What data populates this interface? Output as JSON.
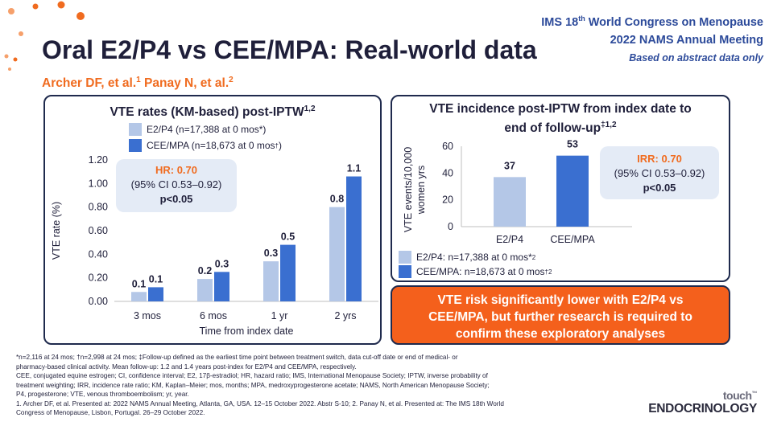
{
  "conference": {
    "line1_pre": "IMS 18",
    "line1_sup": "th",
    "line1_post": " World Congress on Menopause",
    "line2": "2022 NAMS Annual Meeting",
    "note": "Based on abstract data only"
  },
  "title": "Oral E2/P4 vs CEE/MPA: Real-world data",
  "authors": {
    "a1": "Archer DF, et al.",
    "a1_sup": "1",
    "a2": " Panay N, et al.",
    "a2_sup": "2"
  },
  "colors": {
    "e2p4": "#b4c7e7",
    "ceempa": "#3a6fd0",
    "accent": "#f06b1f",
    "navy": "#1f2a4d"
  },
  "left_panel": {
    "title": "VTE rates (KM-based) post-IPTW",
    "title_sup": "1,2",
    "legend": [
      {
        "pre": "E2/P4 (n=17,388 at 0 mos*)",
        "sup": ""
      },
      {
        "pre": "CEE/MPA (n=18,673 at 0 mos",
        "sup": "†",
        "post": ")"
      }
    ],
    "hr_box": {
      "label": "HR: 0.70",
      "ci": "(95% CI 0.53–0.92)",
      "p": "p<0.05"
    }
  },
  "right_panel": {
    "title_line1": "VTE incidence post-IPTW from index date to",
    "title_line2": "end of follow-up",
    "title_sup": "‡1,2",
    "legend": [
      {
        "pre": "E2/P4: n=17,388 at 0 mos*",
        "sup": "2"
      },
      {
        "pre": "CEE/MPA: n=18,673 at 0 mos",
        "sup": "†2"
      }
    ],
    "irr_box": {
      "label": "IRR: 0.70",
      "ci": "(95% CI 0.53–0.92)",
      "p": "p<0.05"
    }
  },
  "callout": {
    "line1": "VTE risk significantly lower with E2/P4 vs",
    "line2": "CEE/MPA, but further research is required to",
    "line3": "confirm these exploratory analyses"
  },
  "footnotes": [
    "*n=2,116 at 24 mos; †n=2,998 at 24 mos; ‡Follow-up defined as the earliest time point between treatment switch, data cut-off date or end of medical- or",
    "pharmacy-based clinical activity. Mean follow-up: 1.2 and 1.4 years post-index for E2/P4 and CEE/MPA, respectively.",
    "CEE, conjugated equine estrogen; CI, confidence interval; E2, 17β-estradiol; HR, hazard ratio; IMS, International Menopause Society; IPTW, inverse probability of",
    "treatment weighting; IRR, incidence rate ratio; KM, Kaplan–Meier; mos, months; MPA, medroxyprogesterone acetate; NAMS, North American Menopause Society;",
    "P4, progesterone; VTE, venous thromboembolism; yr, year.",
    "1. Archer DF, et al. Presented at: 2022 NAMS Annual Meeting, Atlanta, GA, USA. 12–15 October 2022. Abstr S-10; 2. Panay N, et al. Presented at: The IMS 18th World",
    "Congress of Menopause, Lisbon, Portugal. 26–29 October 2022."
  ],
  "logo": {
    "top": "touch",
    "tm": "™",
    "bottom": "ENDOCRINOLOGY"
  },
  "chart_data": [
    {
      "type": "bar",
      "categories": [
        "3 mos",
        "6 mos",
        "1 yr",
        "2 yrs"
      ],
      "series": [
        {
          "name": "E2/P4 (n=17,388 at 0 mos*)",
          "values": [
            0.08,
            0.19,
            0.34,
            0.8
          ],
          "labels": [
            "0.1",
            "0.2",
            "0.3",
            "0.8"
          ]
        },
        {
          "name": "CEE/MPA (n=18,673 at 0 mos†)",
          "values": [
            0.12,
            0.25,
            0.48,
            1.06
          ],
          "labels": [
            "0.1",
            "0.3",
            "0.5",
            "1.1"
          ]
        }
      ],
      "xlabel": "Time from index date",
      "ylabel": "VTE rate (%)",
      "ylim": [
        0,
        1.2
      ],
      "yticks": [
        "0.00",
        "0.20",
        "0.40",
        "0.60",
        "0.80",
        "1.00",
        "1.20"
      ]
    },
    {
      "type": "bar",
      "categories": [
        "E2/P4",
        "CEE/MPA"
      ],
      "values": [
        37,
        53
      ],
      "labels": [
        "37",
        "53"
      ],
      "xlabel": "",
      "ylabel_line1": "VTE events/10,000",
      "ylabel_line2": "women yrs",
      "ylim": [
        0,
        60
      ],
      "yticks": [
        "0",
        "20",
        "40",
        "60"
      ]
    }
  ]
}
